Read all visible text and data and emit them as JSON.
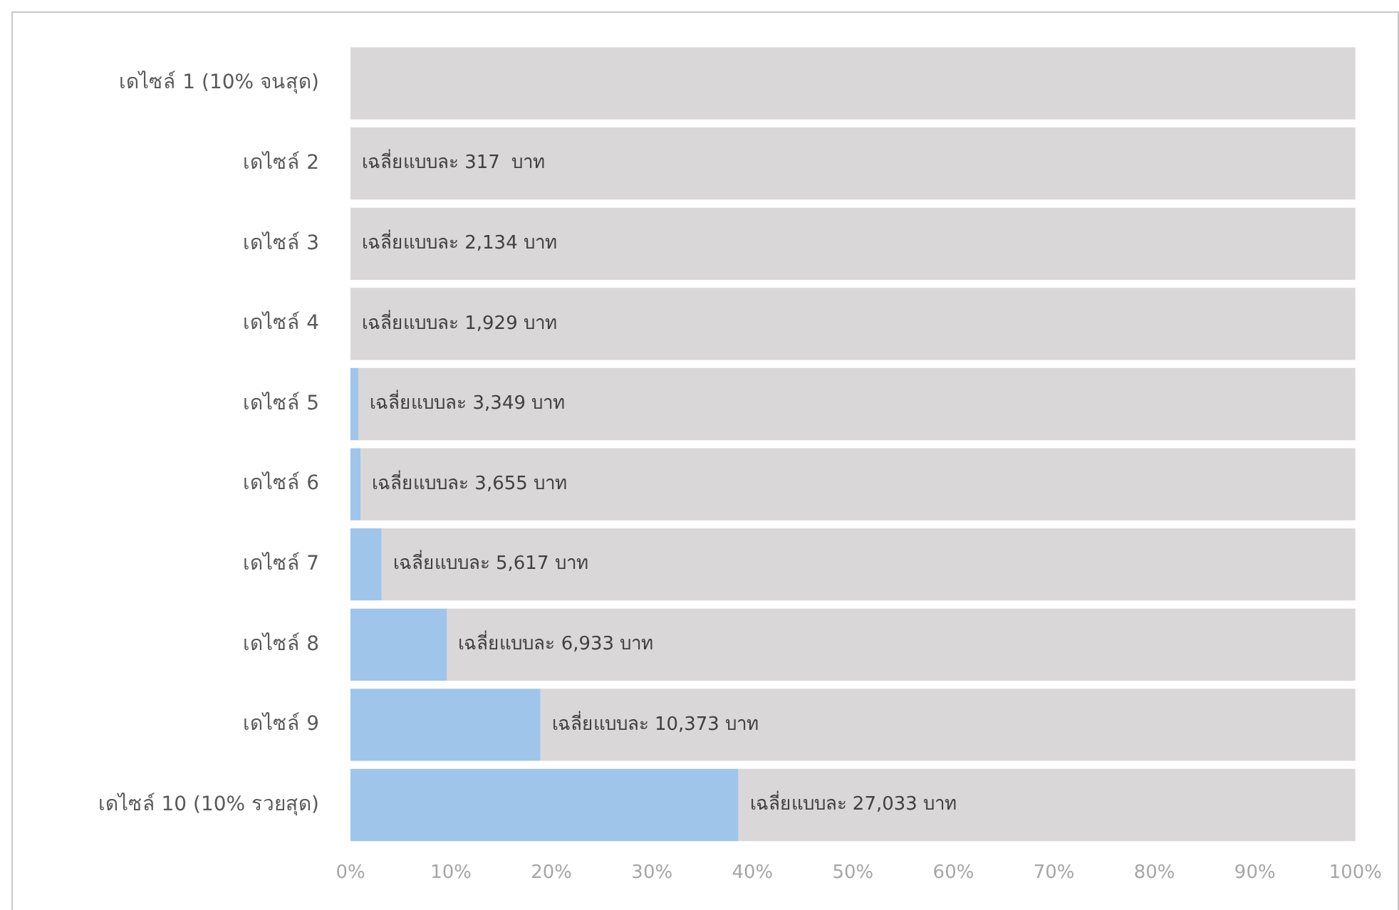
{
  "chart_data": {
    "type": "bar",
    "orientation": "horizontal",
    "stacked": true,
    "categories": [
      "เดไซล์ 1 (10% จนสุด)",
      "เดไซล์ 2",
      "เดไซล์ 3",
      "เดไซล์ 4",
      "เดไซล์ 5",
      "เดไซล์ 6",
      "เดไซล์ 7",
      "เดไซล์ 8",
      "เดไซล์ 9",
      "เดไซล์ 10 (10% รวยสุด)"
    ],
    "series": [
      {
        "color": "#9fc5ea",
        "values": [
          0,
          0,
          0,
          0,
          0.8,
          1,
          3.1,
          9.6,
          18.9,
          38.6
        ]
      },
      {
        "color": "#d9d7d7",
        "values": [
          100,
          100,
          100,
          100,
          99.2,
          99,
          96.9,
          90.4,
          81.1,
          61.4
        ]
      }
    ],
    "xlim": [
      0,
      100
    ],
    "xticks": [
      {
        "value": 0,
        "label": "0%"
      },
      {
        "value": 10,
        "label": "10%"
      },
      {
        "value": 20,
        "label": "20%"
      },
      {
        "value": 30,
        "label": "30%"
      },
      {
        "value": 40,
        "label": "40%"
      },
      {
        "value": 50,
        "label": "50%"
      },
      {
        "value": 60,
        "label": "60%"
      },
      {
        "value": 70,
        "label": "70%"
      },
      {
        "value": 80,
        "label": "80%"
      },
      {
        "value": 90,
        "label": "90%"
      },
      {
        "value": 100,
        "label": "100%"
      }
    ],
    "annotations": [
      {
        "text": "เฉลี่ยแบบละ 317  บาท",
        "x": 0,
        "y": "เดไซล์ 2"
      },
      {
        "text": "เฉลี่ยแบบละ 2,134 บาท",
        "x": 0,
        "y": "เดไซล์ 3"
      },
      {
        "text": "เฉลี่ยแบบละ 1,929 บาท",
        "x": 0,
        "y": "เดไซล์ 4"
      },
      {
        "text": "เฉลี่ยแบบละ 3,349 บาท",
        "x": 0.8,
        "y": "เดไซล์ 5"
      },
      {
        "text": "เฉลี่ยแบบละ 3,655 บาท",
        "x": 1,
        "y": "เดไซล์ 6"
      },
      {
        "text": "เฉลี่ยแบบละ 5,617 บาท",
        "x": 3.1,
        "y": "เดไซล์ 7"
      },
      {
        "text": "เฉลี่ยแบบละ 6,933 บาท",
        "x": 9.6,
        "y": "เดไซล์ 8"
      },
      {
        "text": "เฉลี่ยแบบละ 10,373 บาท",
        "x": 18.9,
        "y": "เดไซล์ 9"
      },
      {
        "text": "เฉลี่ยแบบละ 27,033 บาท",
        "x": 38.6,
        "y": "เดไซล์ 10 (10% รวยสุด)"
      }
    ],
    "grid": false,
    "legend": false
  }
}
